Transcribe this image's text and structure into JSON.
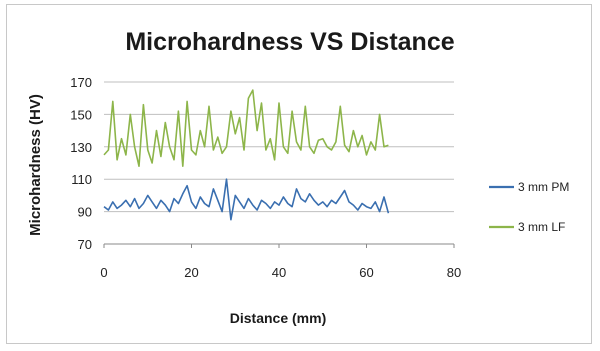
{
  "chart_data": {
    "type": "line",
    "title": "Microhardness VS Distance",
    "xlabel": "Distance (mm)",
    "ylabel": "Microhardness (HV)",
    "xlim": [
      0,
      80
    ],
    "ylim": [
      70,
      170
    ],
    "x_ticks": [
      "0",
      "20",
      "40",
      "60",
      "80"
    ],
    "y_ticks": [
      "70",
      "90",
      "110",
      "130",
      "150",
      "170"
    ],
    "grid": "horizontal",
    "legend_position": "right",
    "series": [
      {
        "name": "3 mm PM",
        "color": "#3a6fb0",
        "x": [
          0,
          1,
          2,
          3,
          4,
          5,
          6,
          7,
          8,
          9,
          10,
          11,
          12,
          13,
          14,
          15,
          16,
          17,
          18,
          19,
          20,
          21,
          22,
          23,
          24,
          25,
          26,
          27,
          28,
          29,
          30,
          31,
          32,
          33,
          34,
          35,
          36,
          37,
          38,
          39,
          40,
          41,
          42,
          43,
          44,
          45,
          46,
          47,
          48,
          49,
          50,
          51,
          52,
          53,
          54,
          55,
          56,
          57,
          58,
          59,
          60,
          61,
          62,
          63,
          64,
          65
        ],
        "y": [
          93,
          91,
          96,
          92,
          94,
          97,
          93,
          98,
          92,
          95,
          100,
          96,
          92,
          97,
          94,
          90,
          98,
          95,
          101,
          106,
          96,
          92,
          99,
          95,
          93,
          104,
          97,
          90,
          110,
          85,
          100,
          96,
          92,
          98,
          94,
          91,
          97,
          95,
          92,
          96,
          94,
          99,
          95,
          93,
          104,
          98,
          96,
          101,
          97,
          94,
          96,
          93,
          97,
          95,
          99,
          103,
          96,
          94,
          91,
          95,
          93,
          92,
          96,
          90,
          99,
          89
        ]
      },
      {
        "name": "3 mm LF",
        "color": "#8db54a",
        "x": [
          0,
          1,
          2,
          3,
          4,
          5,
          6,
          7,
          8,
          9,
          10,
          11,
          12,
          13,
          14,
          15,
          16,
          17,
          18,
          19,
          20,
          21,
          22,
          23,
          24,
          25,
          26,
          27,
          28,
          29,
          30,
          31,
          32,
          33,
          34,
          35,
          36,
          37,
          38,
          39,
          40,
          41,
          42,
          43,
          44,
          45,
          46,
          47,
          48,
          49,
          50,
          51,
          52,
          53,
          54,
          55,
          56,
          57,
          58,
          59,
          60,
          61,
          62,
          63,
          64,
          65
        ],
        "y": [
          125,
          128,
          158,
          122,
          135,
          125,
          150,
          130,
          118,
          156,
          128,
          120,
          140,
          124,
          145,
          130,
          122,
          152,
          118,
          158,
          128,
          125,
          140,
          130,
          155,
          128,
          136,
          126,
          130,
          152,
          138,
          148,
          128,
          160,
          165,
          140,
          157,
          128,
          135,
          122,
          157,
          130,
          126,
          152,
          133,
          128,
          155,
          130,
          126,
          134,
          135,
          130,
          128,
          133,
          155,
          131,
          127,
          140,
          130,
          137,
          125,
          133,
          128,
          150,
          130,
          131
        ]
      }
    ]
  }
}
